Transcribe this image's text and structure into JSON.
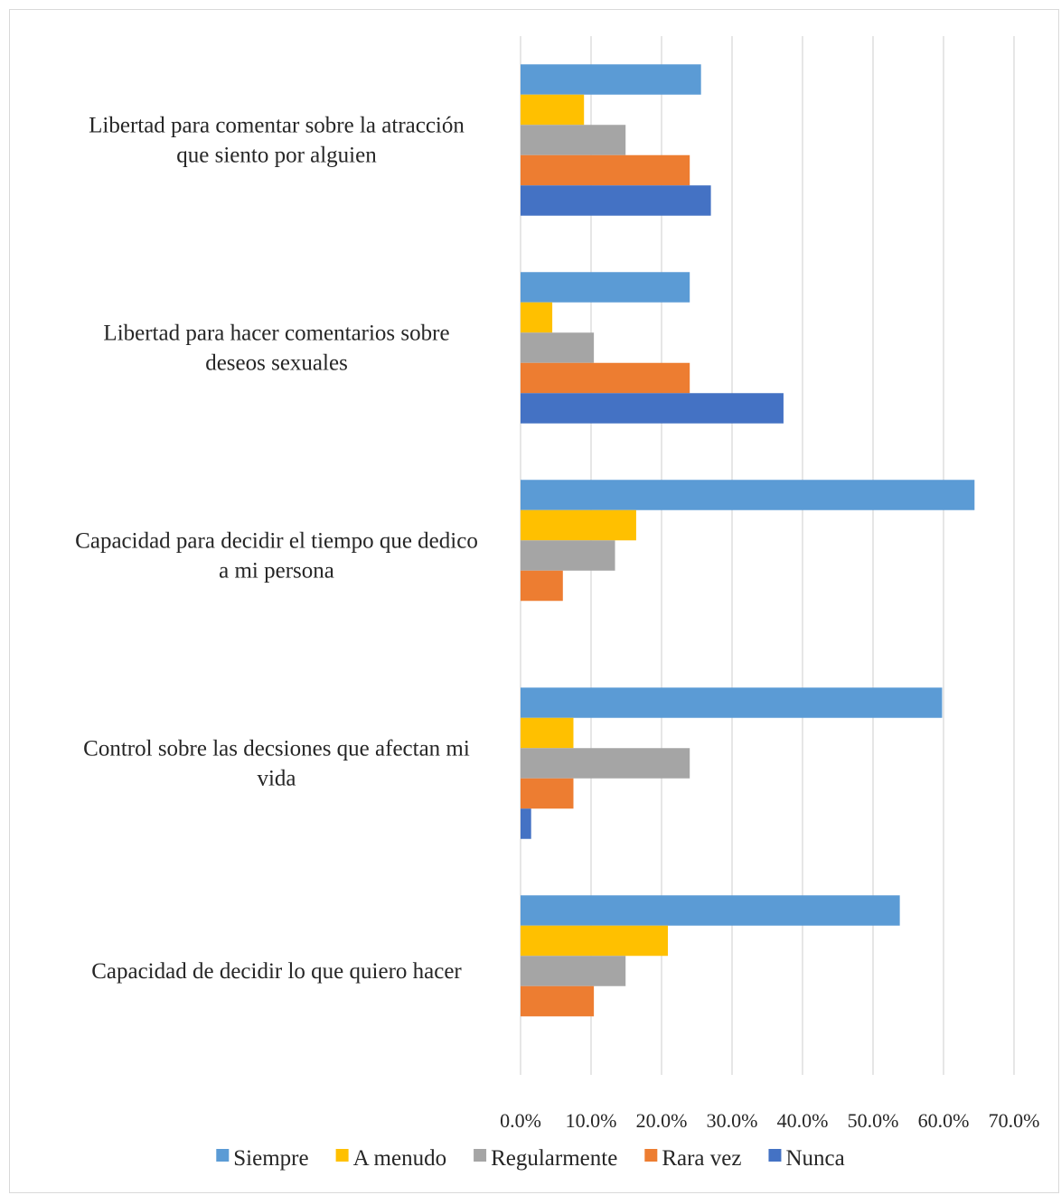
{
  "chart_data": {
    "type": "bar",
    "orientation": "horizontal",
    "title": "",
    "xlabel": "",
    "ylabel": "",
    "xlim": [
      0,
      70
    ],
    "ticks": [
      "0.0%",
      "10.0%",
      "20.0%",
      "30.0%",
      "40.0%",
      "50.0%",
      "60.0%",
      "70.0%"
    ],
    "grid": true,
    "legend_position": "bottom",
    "categories": [
      [
        "Libertad para comentar sobre la atracción",
        "que siento por alguien"
      ],
      [
        "Libertad para hacer comentarios sobre",
        "deseos sexuales"
      ],
      [
        "Capacidad para decidir el tiempo que dedico",
        "a mi persona"
      ],
      [
        "Control sobre las decsiones que afectan mi",
        "vida"
      ],
      [
        "Capacidad de decidir lo que quiero hacer"
      ]
    ],
    "series": [
      {
        "name": "Siempre",
        "color": "#5B9BD5",
        "values": [
          25.6,
          24.0,
          64.4,
          59.8,
          53.8
        ]
      },
      {
        "name": "A menudo",
        "color": "#FFC000",
        "values": [
          9.0,
          4.5,
          16.4,
          7.5,
          20.9
        ]
      },
      {
        "name": "Regularmente",
        "color": "#A5A5A5",
        "values": [
          14.9,
          10.4,
          13.4,
          24.0,
          14.9
        ]
      },
      {
        "name": "Rara vez",
        "color": "#ED7D31",
        "values": [
          24.0,
          24.0,
          6.0,
          7.5,
          10.4
        ]
      },
      {
        "name": "Nunca",
        "color": "#4472C4",
        "values": [
          27.0,
          37.3,
          0,
          1.5,
          0
        ]
      }
    ]
  }
}
